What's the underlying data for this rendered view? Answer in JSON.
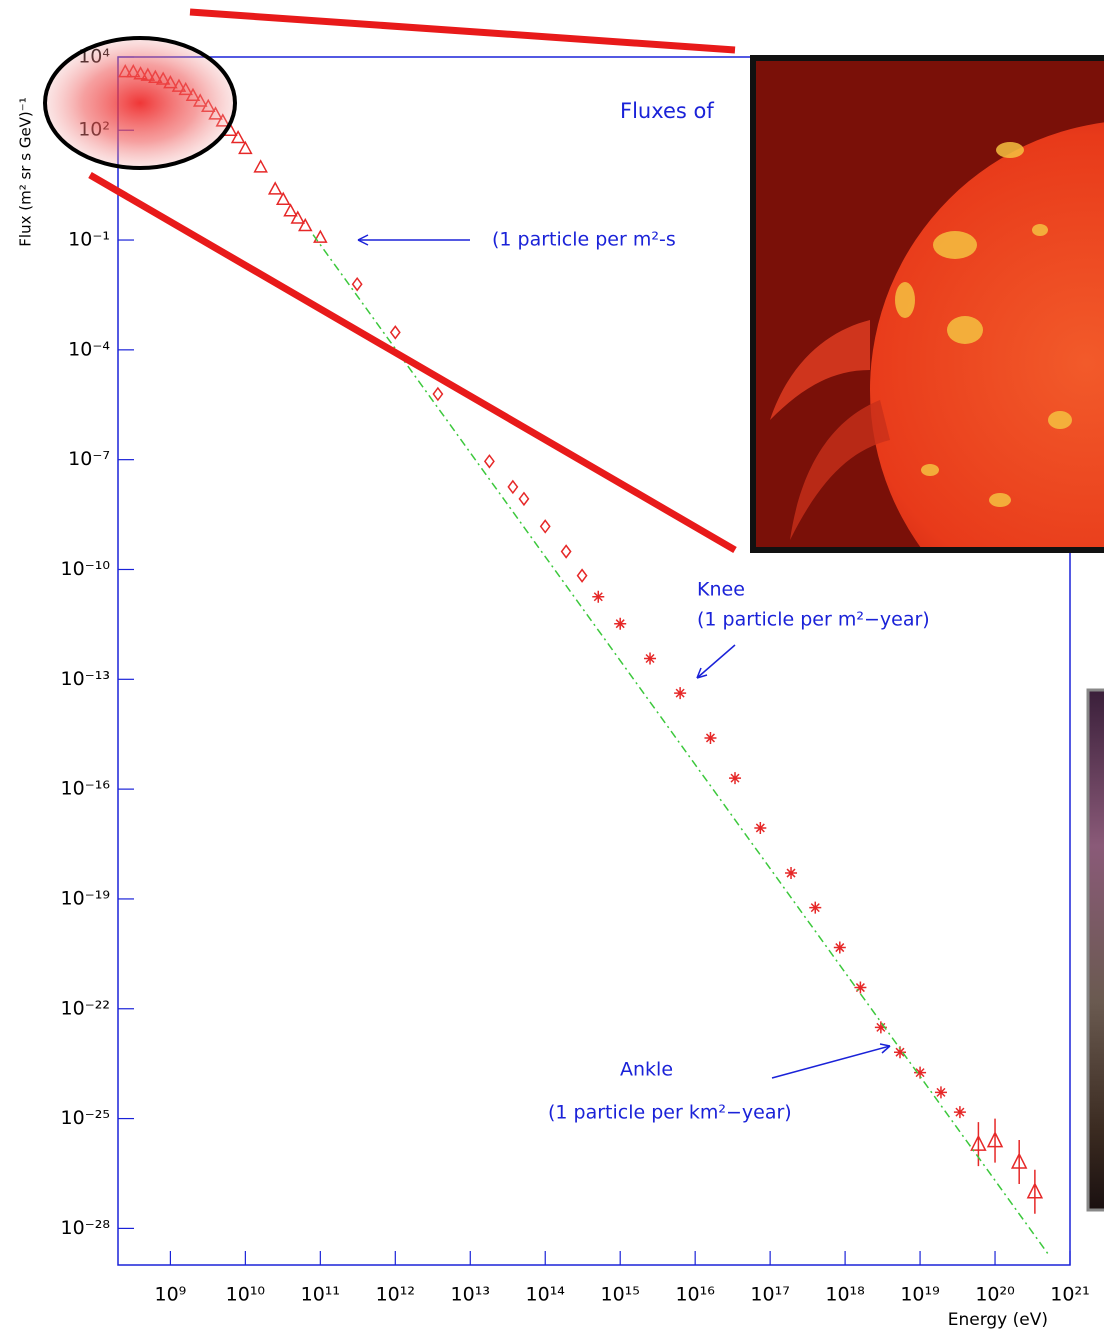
{
  "chart_data": {
    "type": "scatter",
    "title": "Fluxes of",
    "x_label": "Energy (eV)",
    "y_label": "Flux (m² sr s GeV)⁻¹",
    "xscale": "log",
    "yscale": "log",
    "xlim": [
      200000000.0,
      1e+21
    ],
    "ylim": [
      1e-29,
      10000.0
    ],
    "xticks": [
      {
        "value": 1000000000.0,
        "label": "10⁹"
      },
      {
        "value": 10000000000.0,
        "label": "10¹⁰"
      },
      {
        "value": 100000000000.0,
        "label": "10¹¹"
      },
      {
        "value": 1000000000000.0,
        "label": "10¹²"
      },
      {
        "value": 10000000000000.0,
        "label": "10¹³"
      },
      {
        "value": 100000000000000.0,
        "label": "10¹⁴"
      },
      {
        "value": 1000000000000000.0,
        "label": "10¹⁵"
      },
      {
        "value": 1e+16,
        "label": "10¹⁶"
      },
      {
        "value": 1e+17,
        "label": "10¹⁷"
      },
      {
        "value": 1e+18,
        "label": "10¹⁸"
      },
      {
        "value": 1e+19,
        "label": "10¹⁹"
      },
      {
        "value": 1e+20,
        "label": "10²⁰"
      },
      {
        "value": 1e+21,
        "label": "10²¹"
      }
    ],
    "yticks": [
      {
        "value": 10000.0,
        "label": "10⁴"
      },
      {
        "value": 100.0,
        "label": "10²"
      },
      {
        "value": 0.1,
        "label": "10⁻¹"
      },
      {
        "value": 0.0001,
        "label": "10⁻⁴"
      },
      {
        "value": 1e-07,
        "label": "10⁻⁷"
      },
      {
        "value": 1e-10,
        "label": "10⁻¹⁰"
      },
      {
        "value": 1e-13,
        "label": "10⁻¹³"
      },
      {
        "value": 1e-16,
        "label": "10⁻¹⁶"
      },
      {
        "value": 1e-19,
        "label": "10⁻¹⁹"
      },
      {
        "value": 1e-22,
        "label": "10⁻²²"
      },
      {
        "value": 1e-25,
        "label": "10⁻²⁵"
      },
      {
        "value": 1e-28,
        "label": "10⁻²⁸"
      }
    ],
    "series": [
      {
        "marker": "triangle",
        "color": "#e62828",
        "x": [
          250000000.0,
          320000000.0,
          400000000.0,
          500000000.0,
          630000000.0,
          800000000.0,
          1000000000.0,
          1300000000.0,
          1600000000.0,
          2000000000.0,
          2500000000.0,
          3200000000.0,
          4000000000.0,
          5000000000.0,
          6300000000.0,
          8000000000.0,
          10000000000.0,
          16000000000.0,
          25000000000.0,
          32000000000.0,
          40000000000.0,
          50000000000.0,
          63000000000.0,
          100000000000.0
        ],
        "values": [
          4000.0,
          4000.0,
          3500.0,
          3200.0,
          2800.0,
          2500.0,
          2000.0,
          1600.0,
          1300.0,
          900,
          630,
          450,
          280,
          180,
          100,
          63,
          32,
          10,
          2.5,
          1.3,
          0.63,
          0.4,
          0.25,
          0.12
        ]
      },
      {
        "marker": "diamond",
        "color": "#e62828",
        "x": [
          310000000000.0,
          1000000000000.0,
          3700000000000.0,
          18000000000000.0,
          37000000000000.0,
          52000000000000.0,
          100000000000000.0,
          190000000000000.0,
          310000000000000.0
        ],
        "values": [
          0.0062,
          0.0003,
          6.2e-06,
          9e-08,
          1.8e-08,
          8.5e-09,
          1.5e-09,
          3.1e-10,
          6.8e-11
        ]
      },
      {
        "marker": "star",
        "color": "#e62828",
        "x": [
          510000000000000.0,
          1000000000000000.0,
          2500000000000000.0,
          6300000000000000.0,
          1.6e+16,
          3.4e+16,
          7.4e+16,
          1.9e+17,
          4e+17,
          8.5e+17,
          1.6e+18,
          3e+18,
          5.4e+18,
          1e+19,
          1.9e+19,
          3.4e+19
        ],
        "values": [
          1.8e-11,
          3.3e-12,
          3.7e-13,
          4.2e-14,
          2.5e-15,
          2e-16,
          8.7e-18,
          5.1e-19,
          5.8e-20,
          4.7e-21,
          3.8e-22,
          3.1e-23,
          6.5e-24,
          1.8e-24,
          5.2e-25,
          1.5e-25
        ]
      },
      {
        "marker": "open-triangle",
        "color": "#e62828",
        "x": [
          6e+19,
          1e+20,
          2.1e+20,
          3.4e+20
        ],
        "values": [
          2e-26,
          2.5e-26,
          6.5e-27,
          1e-27
        ]
      },
      {
        "marker": "line",
        "style": "dash-dot",
        "color": "#3cc83c",
        "x": [
          80000000000.0,
          5.4e+20
        ],
        "values": [
          0.14,
          1.7e-29
        ]
      }
    ],
    "annotations": [
      {
        "text": "(1 particle per m²-s"
      },
      {
        "text": "Knee"
      },
      {
        "text": "(1 particle per m²−year)"
      },
      {
        "text": "Ankle"
      },
      {
        "text": "(1 particle per km²−year)"
      }
    ]
  }
}
